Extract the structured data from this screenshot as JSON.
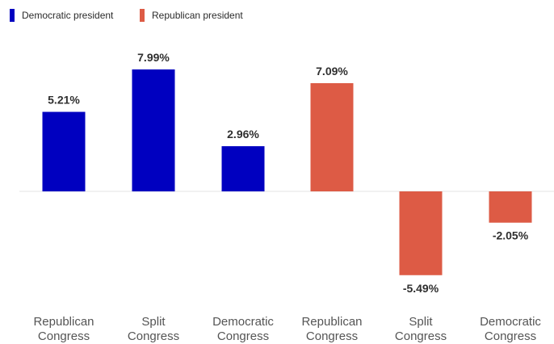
{
  "chart_data": {
    "type": "bar",
    "categories": [
      "Republican Congress",
      "Split Congress",
      "Democratic Congress",
      "Republican Congress",
      "Split Congress",
      "Democratic Congress"
    ],
    "values": [
      5.21,
      7.99,
      2.96,
      7.09,
      -5.49,
      -2.05
    ],
    "value_labels": [
      "5.21%",
      "7.99%",
      "2.96%",
      "7.09%",
      "-5.49%",
      "-2.05%"
    ],
    "bar_series": [
      0,
      0,
      0,
      1,
      1,
      1
    ],
    "series": [
      {
        "name": "Democratic president",
        "color": "#0000c0"
      },
      {
        "name": "Republican president",
        "color": "#dd5b45"
      }
    ],
    "legend_position": "top-left",
    "ylim": [
      -7.5,
      9.5
    ],
    "grid": false,
    "zero_line_color": "#e3e3e3"
  }
}
